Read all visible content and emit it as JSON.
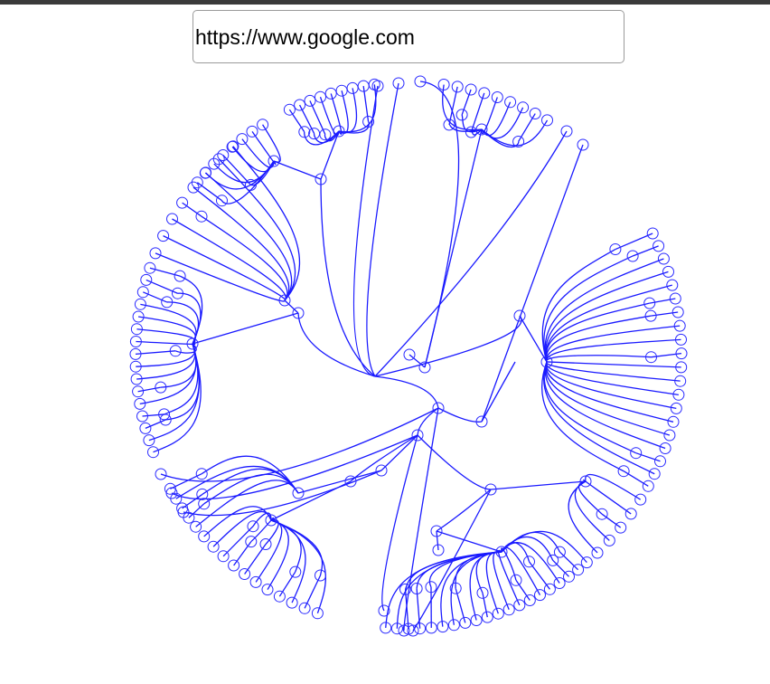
{
  "address_bar": {
    "url": "https://www.google.com"
  }
}
